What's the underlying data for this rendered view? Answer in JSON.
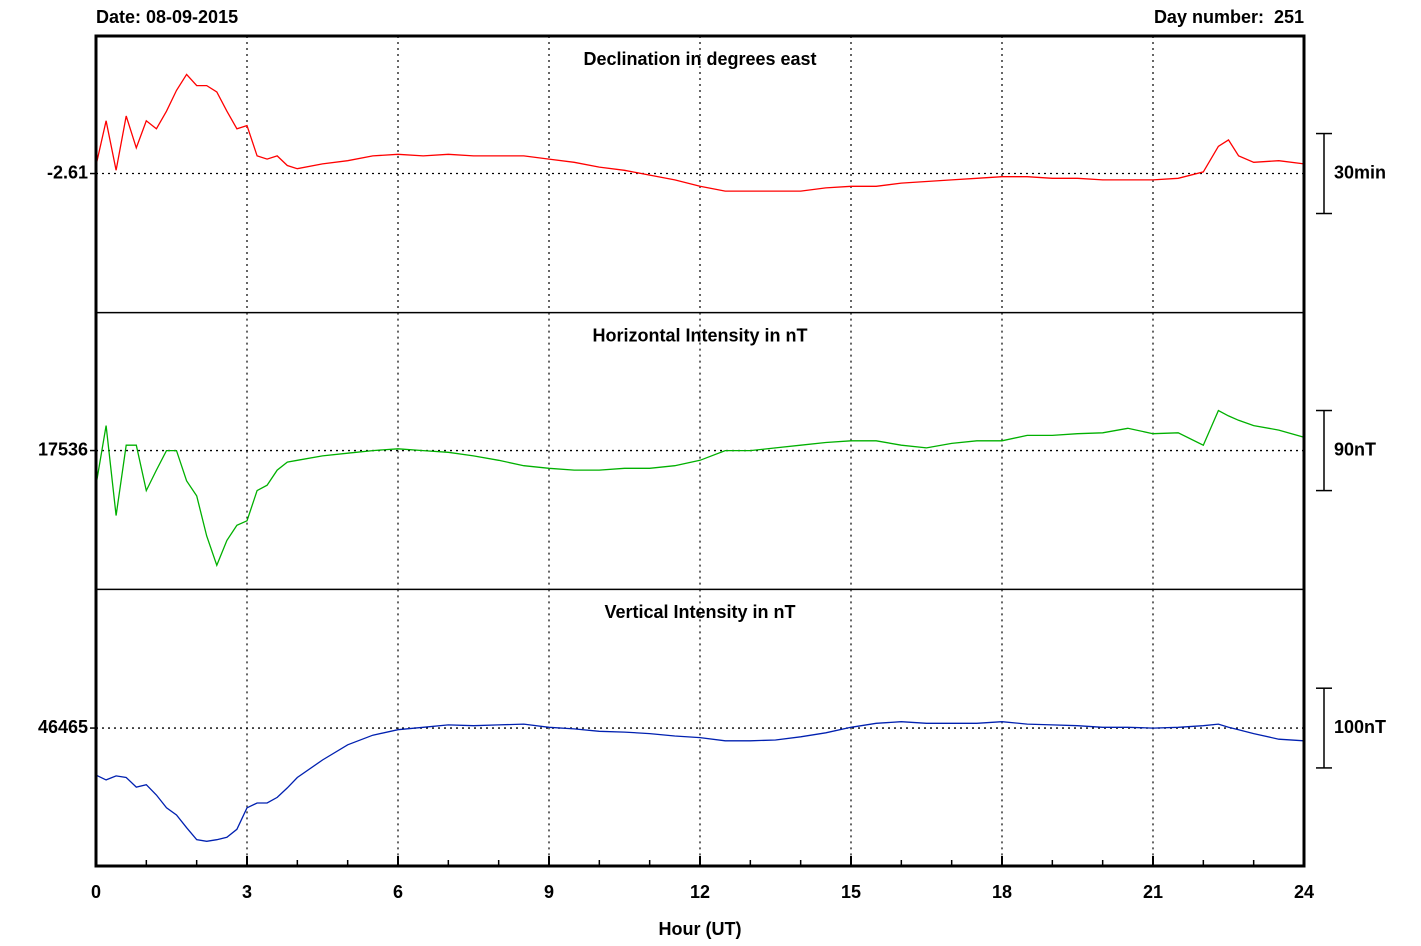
{
  "header": {
    "date": "Date: 08-09-2015",
    "day_number": "Day number:  251"
  },
  "chart_data": [
    {
      "type": "line",
      "title": "Declination in degrees east",
      "color": "#ff0000",
      "x": [
        0,
        0.2,
        0.4,
        0.6,
        0.8,
        1,
        1.2,
        1.4,
        1.6,
        1.8,
        2,
        2.2,
        2.4,
        2.6,
        2.8,
        3,
        3.2,
        3.4,
        3.6,
        3.8,
        4,
        4.5,
        5,
        5.5,
        6,
        6.5,
        7,
        7.5,
        8,
        8.5,
        9,
        9.5,
        10,
        10.5,
        11,
        11.5,
        12,
        12.5,
        13,
        13.5,
        14,
        14.5,
        15,
        15.5,
        16,
        16.5,
        17,
        17.5,
        18,
        18.5,
        19,
        19.5,
        20,
        20.5,
        21,
        21.5,
        22,
        22.3,
        22.5,
        22.7,
        23,
        23.5,
        24
      ],
      "values": [
        -2.56,
        -2.28,
        -2.59,
        -2.25,
        -2.45,
        -2.28,
        -2.33,
        -2.22,
        -2.09,
        -1.99,
        -2.06,
        -2.06,
        -2.1,
        -2.22,
        -2.33,
        -2.31,
        -2.5,
        -2.52,
        -2.5,
        -2.56,
        -2.58,
        -2.55,
        -2.53,
        -2.5,
        -2.49,
        -2.5,
        -2.49,
        -2.5,
        -2.5,
        -2.5,
        -2.52,
        -2.54,
        -2.57,
        -2.59,
        -2.62,
        -2.65,
        -2.69,
        -2.72,
        -2.72,
        -2.72,
        -2.72,
        -2.7,
        -2.69,
        -2.69,
        -2.67,
        -2.66,
        -2.65,
        -2.64,
        -2.63,
        -2.63,
        -2.64,
        -2.64,
        -2.65,
        -2.65,
        -2.65,
        -2.64,
        -2.6,
        -2.44,
        -2.4,
        -2.5,
        -2.54,
        -2.53,
        -2.55
      ],
      "xlim": [
        0,
        24
      ],
      "xticks": [
        0,
        3,
        6,
        9,
        12,
        15,
        18,
        21,
        24
      ],
      "ylim": [
        -3.48,
        -1.75
      ],
      "yticks": [
        -2.61
      ],
      "scale_bar": {
        "value": 0.5,
        "label": "30min"
      }
    },
    {
      "type": "line",
      "title": "Horizontal Intensity in nT",
      "color": "#00b000",
      "x": [
        0,
        0.2,
        0.4,
        0.6,
        0.8,
        1,
        1.2,
        1.4,
        1.6,
        1.8,
        2,
        2.2,
        2.4,
        2.6,
        2.8,
        3,
        3.2,
        3.4,
        3.6,
        3.8,
        4,
        4.5,
        5,
        5.5,
        6,
        6.5,
        7,
        7.5,
        8,
        8.5,
        9,
        9.5,
        10,
        10.5,
        11,
        11.5,
        12,
        12.5,
        13,
        13.5,
        14,
        14.5,
        15,
        15.5,
        16,
        16.5,
        17,
        17.5,
        18,
        18.5,
        19,
        19.5,
        20,
        20.5,
        21,
        21.5,
        22,
        22.3,
        22.5,
        22.7,
        23,
        23.5,
        24
      ],
      "values": [
        17497,
        17564,
        17463,
        17542,
        17542,
        17491,
        17514,
        17536,
        17536,
        17502,
        17485,
        17440,
        17407,
        17435,
        17452,
        17457,
        17491,
        17497,
        17514,
        17523,
        17525,
        17530,
        17533,
        17536,
        17538,
        17536,
        17534,
        17530,
        17525,
        17519,
        17516,
        17514,
        17514,
        17516,
        17516,
        17519,
        17525,
        17536,
        17536,
        17539,
        17542,
        17545,
        17547,
        17547,
        17542,
        17539,
        17544,
        17547,
        17547,
        17553,
        17553,
        17555,
        17556,
        17561,
        17555,
        17556,
        17542,
        17581,
        17575,
        17570,
        17564,
        17559,
        17551
      ],
      "xlim": [
        0,
        24
      ],
      "xticks": [
        0,
        3,
        6,
        9,
        12,
        15,
        18,
        21,
        24
      ],
      "ylim": [
        17380,
        17691
      ],
      "yticks": [
        17536
      ],
      "scale_bar": {
        "value": 90,
        "label": "90nT"
      }
    },
    {
      "type": "line",
      "title": "Vertical Intensity in nT",
      "color": "#0020b0",
      "x": [
        0,
        0.2,
        0.4,
        0.6,
        0.8,
        1,
        1.2,
        1.4,
        1.6,
        1.8,
        2,
        2.2,
        2.4,
        2.6,
        2.8,
        3,
        3.2,
        3.4,
        3.6,
        3.8,
        4,
        4.5,
        5,
        5.5,
        6,
        6.5,
        7,
        7.5,
        8,
        8.5,
        9,
        9.5,
        10,
        10.5,
        11,
        11.5,
        12,
        12.5,
        13,
        13.5,
        14,
        14.5,
        15,
        15.5,
        16,
        16.5,
        17,
        17.5,
        18,
        18.5,
        19,
        19.5,
        20,
        20.5,
        21,
        21.5,
        22,
        22.3,
        22.5,
        22.7,
        23,
        23.5,
        24
      ],
      "values": [
        46406,
        46400,
        46405,
        46403,
        46391,
        46394,
        46381,
        46365,
        46356,
        46340,
        46325,
        46323,
        46325,
        46328,
        46338,
        46365,
        46371,
        46371,
        46378,
        46390,
        46403,
        46425,
        46444,
        46456,
        46463,
        46466,
        46469,
        46468,
        46469,
        46470,
        46466,
        46464,
        46461,
        46460,
        46458,
        46455,
        46453,
        46449,
        46449,
        46450,
        46454,
        46459,
        46466,
        46471,
        46473,
        46471,
        46471,
        46471,
        46473,
        46470,
        46469,
        46468,
        46466,
        46466,
        46465,
        46466,
        46468,
        46470,
        46466,
        46463,
        46458,
        46451,
        46449
      ],
      "xlim": [
        0,
        24
      ],
      "xticks": [
        0,
        3,
        6,
        9,
        12,
        15,
        18,
        21,
        24
      ],
      "xlabel": "Hour (UT)",
      "ylim": [
        46292,
        46639
      ],
      "yticks": [
        46465
      ],
      "scale_bar": {
        "value": 100,
        "label": "100nT"
      }
    }
  ]
}
